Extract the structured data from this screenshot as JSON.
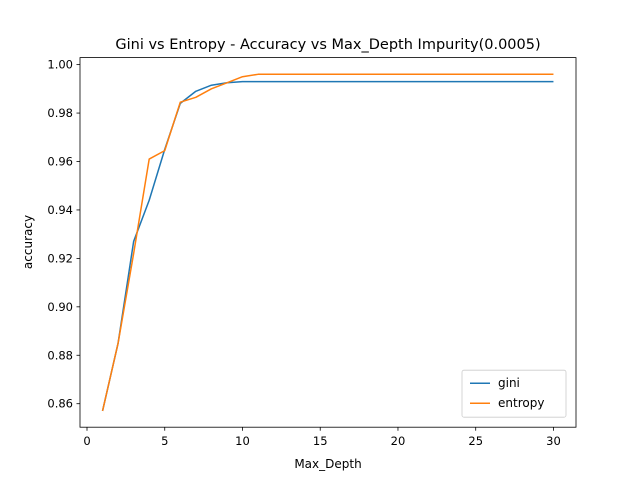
{
  "chart_data": {
    "type": "line",
    "title": "Gini vs Entropy - Accuracy vs Max_Depth Impurity(0.0005)",
    "xlabel": "Max_Depth",
    "ylabel": "accuracy",
    "xlim": [
      -0.45,
      31.45
    ],
    "ylim": [
      0.8503,
      1.0029
    ],
    "xticks": [
      0,
      5,
      10,
      15,
      20,
      25,
      30
    ],
    "xtick_labels": [
      "0",
      "5",
      "10",
      "15",
      "20",
      "25",
      "30"
    ],
    "yticks": [
      0.86,
      0.88,
      0.9,
      0.92,
      0.94,
      0.96,
      0.98,
      1.0
    ],
    "ytick_labels": [
      "0.86",
      "0.88",
      "0.90",
      "0.92",
      "0.94",
      "0.96",
      "0.98",
      "1.00"
    ],
    "grid": false,
    "legend_position": "lower-right",
    "x": [
      1,
      2,
      3,
      4,
      5,
      6,
      7,
      8,
      9,
      10,
      11,
      12,
      13,
      14,
      15,
      16,
      17,
      18,
      19,
      20,
      21,
      22,
      23,
      24,
      25,
      26,
      27,
      28,
      29,
      30
    ],
    "series": [
      {
        "name": "gini",
        "color": "#1f77b4",
        "values": [
          0.857,
          0.885,
          0.927,
          0.944,
          0.965,
          0.984,
          0.989,
          0.9915,
          0.9925,
          0.993,
          0.993,
          0.993,
          0.993,
          0.993,
          0.993,
          0.993,
          0.993,
          0.993,
          0.993,
          0.993,
          0.993,
          0.993,
          0.993,
          0.993,
          0.993,
          0.993,
          0.993,
          0.993,
          0.993,
          0.993
        ]
      },
      {
        "name": "entropy",
        "color": "#ff7f0e",
        "values": [
          0.857,
          0.885,
          0.922,
          0.961,
          0.9645,
          0.9845,
          0.9865,
          0.99,
          0.9925,
          0.995,
          0.996,
          0.996,
          0.996,
          0.996,
          0.996,
          0.996,
          0.996,
          0.996,
          0.996,
          0.996,
          0.996,
          0.996,
          0.996,
          0.996,
          0.996,
          0.996,
          0.996,
          0.996,
          0.996,
          0.996
        ]
      }
    ]
  }
}
